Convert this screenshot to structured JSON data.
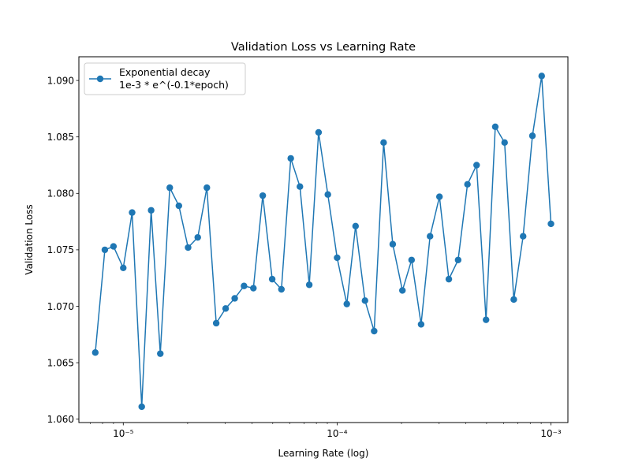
{
  "chart_data": {
    "type": "line",
    "title": "Validation Loss vs Learning Rate",
    "xlabel": "Learning Rate (log)",
    "ylabel": "Validation Loss",
    "xscale": "log",
    "xlim": [
      6.2e-06,
      0.0012
    ],
    "ylim": [
      1.0597,
      1.0921
    ],
    "grid": false,
    "legend_position": "upper-left",
    "line_color": "#1f77b4",
    "marker": "circle",
    "x_ticks": [
      {
        "value": 1e-05,
        "label": "10⁻⁵"
      },
      {
        "value": 0.0001,
        "label": "10⁻⁴"
      },
      {
        "value": 0.001,
        "label": "10⁻³"
      }
    ],
    "y_ticks": [
      {
        "value": 1.06,
        "label": "1.060"
      },
      {
        "value": 1.065,
        "label": "1.065"
      },
      {
        "value": 1.07,
        "label": "1.070"
      },
      {
        "value": 1.075,
        "label": "1.075"
      },
      {
        "value": 1.08,
        "label": "1.080"
      },
      {
        "value": 1.085,
        "label": "1.085"
      },
      {
        "value": 1.09,
        "label": "1.090"
      }
    ],
    "series": [
      {
        "name": "Exponential decay\n1e-3 * e^(-0.1*epoch)",
        "x": [
          7.4e-06,
          8.2e-06,
          9e-06,
          1e-05,
          1.1e-05,
          1.22e-05,
          1.35e-05,
          1.49e-05,
          1.65e-05,
          1.82e-05,
          2.01e-05,
          2.23e-05,
          2.46e-05,
          2.72e-05,
          3.01e-05,
          3.32e-05,
          3.67e-05,
          4.06e-05,
          4.49e-05,
          4.97e-05,
          5.49e-05,
          6.07e-05,
          6.7e-05,
          7.41e-05,
          8.19e-05,
          9.05e-05,
          0.0001,
          0.000111,
          0.000122,
          0.000135,
          0.000149,
          0.000165,
          0.000182,
          0.000202,
          0.000223,
          0.000247,
          0.000272,
          0.000301,
          0.000333,
          0.000368,
          0.000407,
          0.000449,
          0.000497,
          0.000549,
          0.000607,
          0.00067,
          0.000741,
          0.000819,
          0.000905,
          0.001
        ],
        "y": [
          1.0659,
          1.075,
          1.0753,
          1.0734,
          1.0783,
          1.0611,
          1.0785,
          1.0658,
          1.0805,
          1.0789,
          1.0752,
          1.0761,
          1.0805,
          1.0685,
          1.0698,
          1.0707,
          1.0718,
          1.0716,
          1.0798,
          1.0724,
          1.0715,
          1.0831,
          1.0806,
          1.0719,
          1.0854,
          1.0799,
          1.0743,
          1.0702,
          1.0771,
          1.0705,
          1.0678,
          1.0845,
          1.0755,
          1.0714,
          1.0741,
          1.0684,
          1.0762,
          1.0797,
          1.0724,
          1.0741,
          1.0808,
          1.0825,
          1.0688,
          1.0859,
          1.0845,
          1.0706,
          1.0762,
          1.0851,
          1.0904,
          1.0773
        ]
      }
    ]
  }
}
